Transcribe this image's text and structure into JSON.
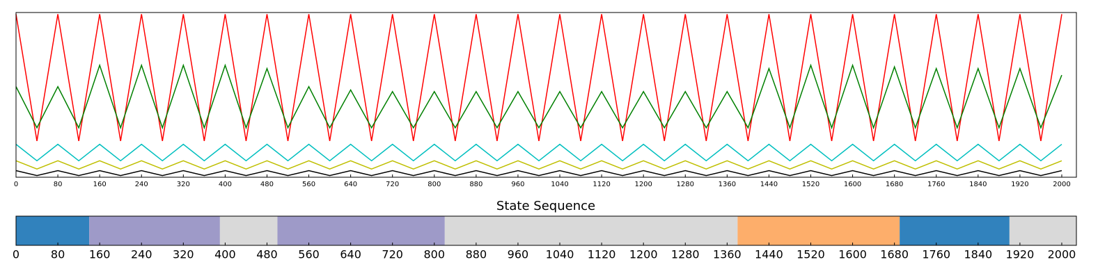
{
  "chart_data": [
    {
      "type": "line",
      "x": [
        0,
        40,
        80,
        120,
        160,
        200,
        240,
        280,
        320,
        360,
        400,
        440,
        480,
        520,
        560,
        600,
        640,
        680,
        720,
        760,
        800,
        840,
        880,
        920,
        960,
        1000,
        1040,
        1080,
        1120,
        1160,
        1200,
        1240,
        1280,
        1320,
        1360,
        1400,
        1440,
        1480,
        1520,
        1560,
        1600,
        1640,
        1680,
        1720,
        1760,
        1800,
        1840,
        1880,
        1920,
        1960,
        2000
      ],
      "series": [
        {
          "color": "#ff0000",
          "values": [
            0.99,
            0.22,
            0.99,
            0.22,
            0.99,
            0.22,
            0.99,
            0.22,
            0.99,
            0.22,
            0.99,
            0.22,
            0.99,
            0.22,
            0.99,
            0.22,
            0.99,
            0.22,
            0.99,
            0.22,
            0.99,
            0.22,
            0.99,
            0.22,
            0.99,
            0.22,
            0.99,
            0.22,
            0.99,
            0.22,
            0.99,
            0.22,
            0.99,
            0.22,
            0.99,
            0.22,
            0.99,
            0.22,
            0.99,
            0.22,
            0.99,
            0.22,
            0.99,
            0.22,
            0.99,
            0.22,
            0.99,
            0.22,
            0.99,
            0.22,
            0.99
          ]
        },
        {
          "color": "#008000",
          "values": [
            0.55,
            0.3,
            0.55,
            0.3,
            0.68,
            0.3,
            0.68,
            0.3,
            0.68,
            0.3,
            0.68,
            0.3,
            0.66,
            0.3,
            0.55,
            0.3,
            0.53,
            0.3,
            0.52,
            0.3,
            0.52,
            0.3,
            0.52,
            0.3,
            0.52,
            0.3,
            0.52,
            0.3,
            0.52,
            0.3,
            0.52,
            0.3,
            0.52,
            0.3,
            0.52,
            0.3,
            0.66,
            0.3,
            0.68,
            0.3,
            0.68,
            0.3,
            0.67,
            0.3,
            0.66,
            0.3,
            0.66,
            0.3,
            0.66,
            0.3,
            0.62
          ]
        },
        {
          "color": "#00bfbf",
          "values": [
            0.2,
            0.1,
            0.2,
            0.1,
            0.2,
            0.1,
            0.2,
            0.1,
            0.2,
            0.1,
            0.2,
            0.1,
            0.2,
            0.1,
            0.2,
            0.1,
            0.2,
            0.1,
            0.2,
            0.1,
            0.2,
            0.1,
            0.2,
            0.1,
            0.2,
            0.1,
            0.2,
            0.1,
            0.2,
            0.1,
            0.2,
            0.1,
            0.2,
            0.1,
            0.2,
            0.1,
            0.2,
            0.1,
            0.2,
            0.1,
            0.2,
            0.1,
            0.2,
            0.1,
            0.2,
            0.1,
            0.2,
            0.1,
            0.2,
            0.1,
            0.2
          ]
        },
        {
          "color": "#bfbf00",
          "values": [
            0.1,
            0.05,
            0.1,
            0.05,
            0.1,
            0.05,
            0.1,
            0.05,
            0.1,
            0.05,
            0.1,
            0.05,
            0.1,
            0.05,
            0.1,
            0.05,
            0.1,
            0.05,
            0.1,
            0.05,
            0.1,
            0.05,
            0.1,
            0.05,
            0.1,
            0.05,
            0.1,
            0.05,
            0.1,
            0.05,
            0.1,
            0.05,
            0.1,
            0.05,
            0.1,
            0.05,
            0.1,
            0.05,
            0.1,
            0.05,
            0.1,
            0.05,
            0.1,
            0.05,
            0.1,
            0.05,
            0.1,
            0.05,
            0.1,
            0.05,
            0.1
          ]
        },
        {
          "color": "#000000",
          "values": [
            0.04,
            0.01,
            0.04,
            0.01,
            0.04,
            0.01,
            0.04,
            0.01,
            0.04,
            0.01,
            0.04,
            0.01,
            0.04,
            0.01,
            0.04,
            0.01,
            0.04,
            0.01,
            0.04,
            0.01,
            0.04,
            0.01,
            0.04,
            0.01,
            0.04,
            0.01,
            0.04,
            0.01,
            0.04,
            0.01,
            0.04,
            0.01,
            0.04,
            0.01,
            0.04,
            0.01,
            0.04,
            0.01,
            0.04,
            0.01,
            0.04,
            0.01,
            0.04,
            0.01,
            0.04,
            0.01,
            0.04,
            0.01,
            0.04,
            0.01,
            0.04
          ]
        }
      ],
      "xlim": [
        0,
        2028
      ],
      "ylim": [
        0,
        1
      ],
      "xticks": [
        0,
        80,
        160,
        240,
        320,
        400,
        480,
        560,
        640,
        720,
        800,
        880,
        960,
        1040,
        1120,
        1200,
        1280,
        1360,
        1440,
        1520,
        1600,
        1680,
        1760,
        1840,
        1920,
        2000
      ]
    },
    {
      "type": "timeline",
      "title": "State Sequence",
      "segments": [
        {
          "start": 0,
          "end": 140,
          "color": "#3182bd"
        },
        {
          "start": 140,
          "end": 390,
          "color": "#9e9ac8"
        },
        {
          "start": 390,
          "end": 500,
          "color": "#d9d9d9"
        },
        {
          "start": 500,
          "end": 820,
          "color": "#9e9ac8"
        },
        {
          "start": 820,
          "end": 1380,
          "color": "#d9d9d9"
        },
        {
          "start": 1380,
          "end": 1690,
          "color": "#fdae6b"
        },
        {
          "start": 1690,
          "end": 1900,
          "color": "#3182bd"
        },
        {
          "start": 1900,
          "end": 2028,
          "color": "#d9d9d9"
        }
      ],
      "xlim": [
        0,
        2028
      ],
      "xticks": [
        0,
        80,
        160,
        240,
        320,
        400,
        480,
        560,
        640,
        720,
        800,
        880,
        960,
        1040,
        1120,
        1200,
        1280,
        1360,
        1440,
        1520,
        1600,
        1680,
        1760,
        1840,
        1920,
        2000
      ]
    }
  ]
}
